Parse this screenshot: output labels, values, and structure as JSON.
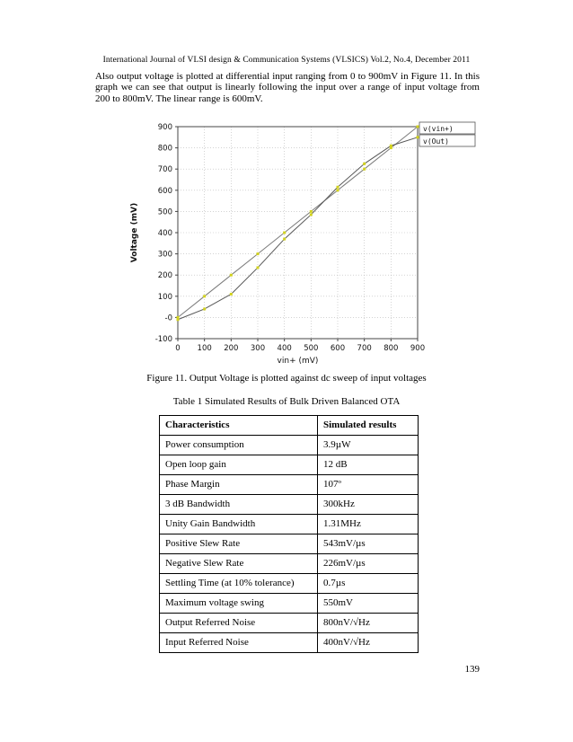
{
  "page": {
    "header": "International Journal of VLSI design & Communication Systems (VLSICS) Vol.2, No.4, December 2011",
    "paragraph": "Also output voltage is plotted at differential input ranging from 0 to 900mV in Figure 11. In this graph we can see that output is linearly following the input over a range of input voltage from 200 to 800mV. The linear range is 600mV.",
    "figure_caption": "Figure 11. Output Voltage is plotted against dc sweep of input voltages",
    "table_title": "Table 1 Simulated Results of Bulk Driven Balanced OTA",
    "page_number": "139"
  },
  "chart_data": {
    "type": "line",
    "title": "",
    "xlabel": "vin+ (mV)",
    "ylabel": "Voltage (mV)",
    "xlim": [
      0,
      900
    ],
    "ylim": [
      -100,
      900
    ],
    "x_ticks": [
      0,
      100,
      200,
      300,
      400,
      500,
      600,
      700,
      800,
      900
    ],
    "y_ticks": [
      900,
      800,
      700,
      600,
      500,
      400,
      300,
      200,
      100,
      "-0",
      -100
    ],
    "grid": "dotted",
    "legend_position": "top-right-outside",
    "marker_color": "#d2d21e",
    "x": [
      0,
      100,
      200,
      300,
      400,
      500,
      600,
      700,
      800,
      900
    ],
    "series": [
      {
        "name": "v(vin+)",
        "color": "#7a7a7a",
        "values": [
          0,
          100,
          200,
          300,
          400,
          500,
          600,
          700,
          800,
          900
        ]
      },
      {
        "name": "v(Out)",
        "color": "#555555",
        "values": [
          -10,
          40,
          110,
          235,
          370,
          485,
          615,
          725,
          810,
          850
        ]
      }
    ]
  },
  "table": {
    "headers": [
      "Characteristics",
      "Simulated results"
    ],
    "rows": [
      [
        "Power consumption",
        "3.9µW"
      ],
      [
        "Open loop gain",
        "12 dB"
      ],
      [
        "Phase Margin",
        "107º"
      ],
      [
        "3 dB Bandwidth",
        "300kHz"
      ],
      [
        "Unity Gain Bandwidth",
        "1.31MHz"
      ],
      [
        "Positive Slew Rate",
        "543mV/µs"
      ],
      [
        "Negative Slew Rate",
        "226mV/µs"
      ],
      [
        "Settling Time (at 10% tolerance)",
        "0.7µs"
      ],
      [
        "Maximum voltage swing",
        "550mV"
      ],
      [
        "Output Referred Noise",
        "800nV/√Hz"
      ],
      [
        "Input Referred Noise",
        "400nV/√Hz"
      ]
    ]
  }
}
